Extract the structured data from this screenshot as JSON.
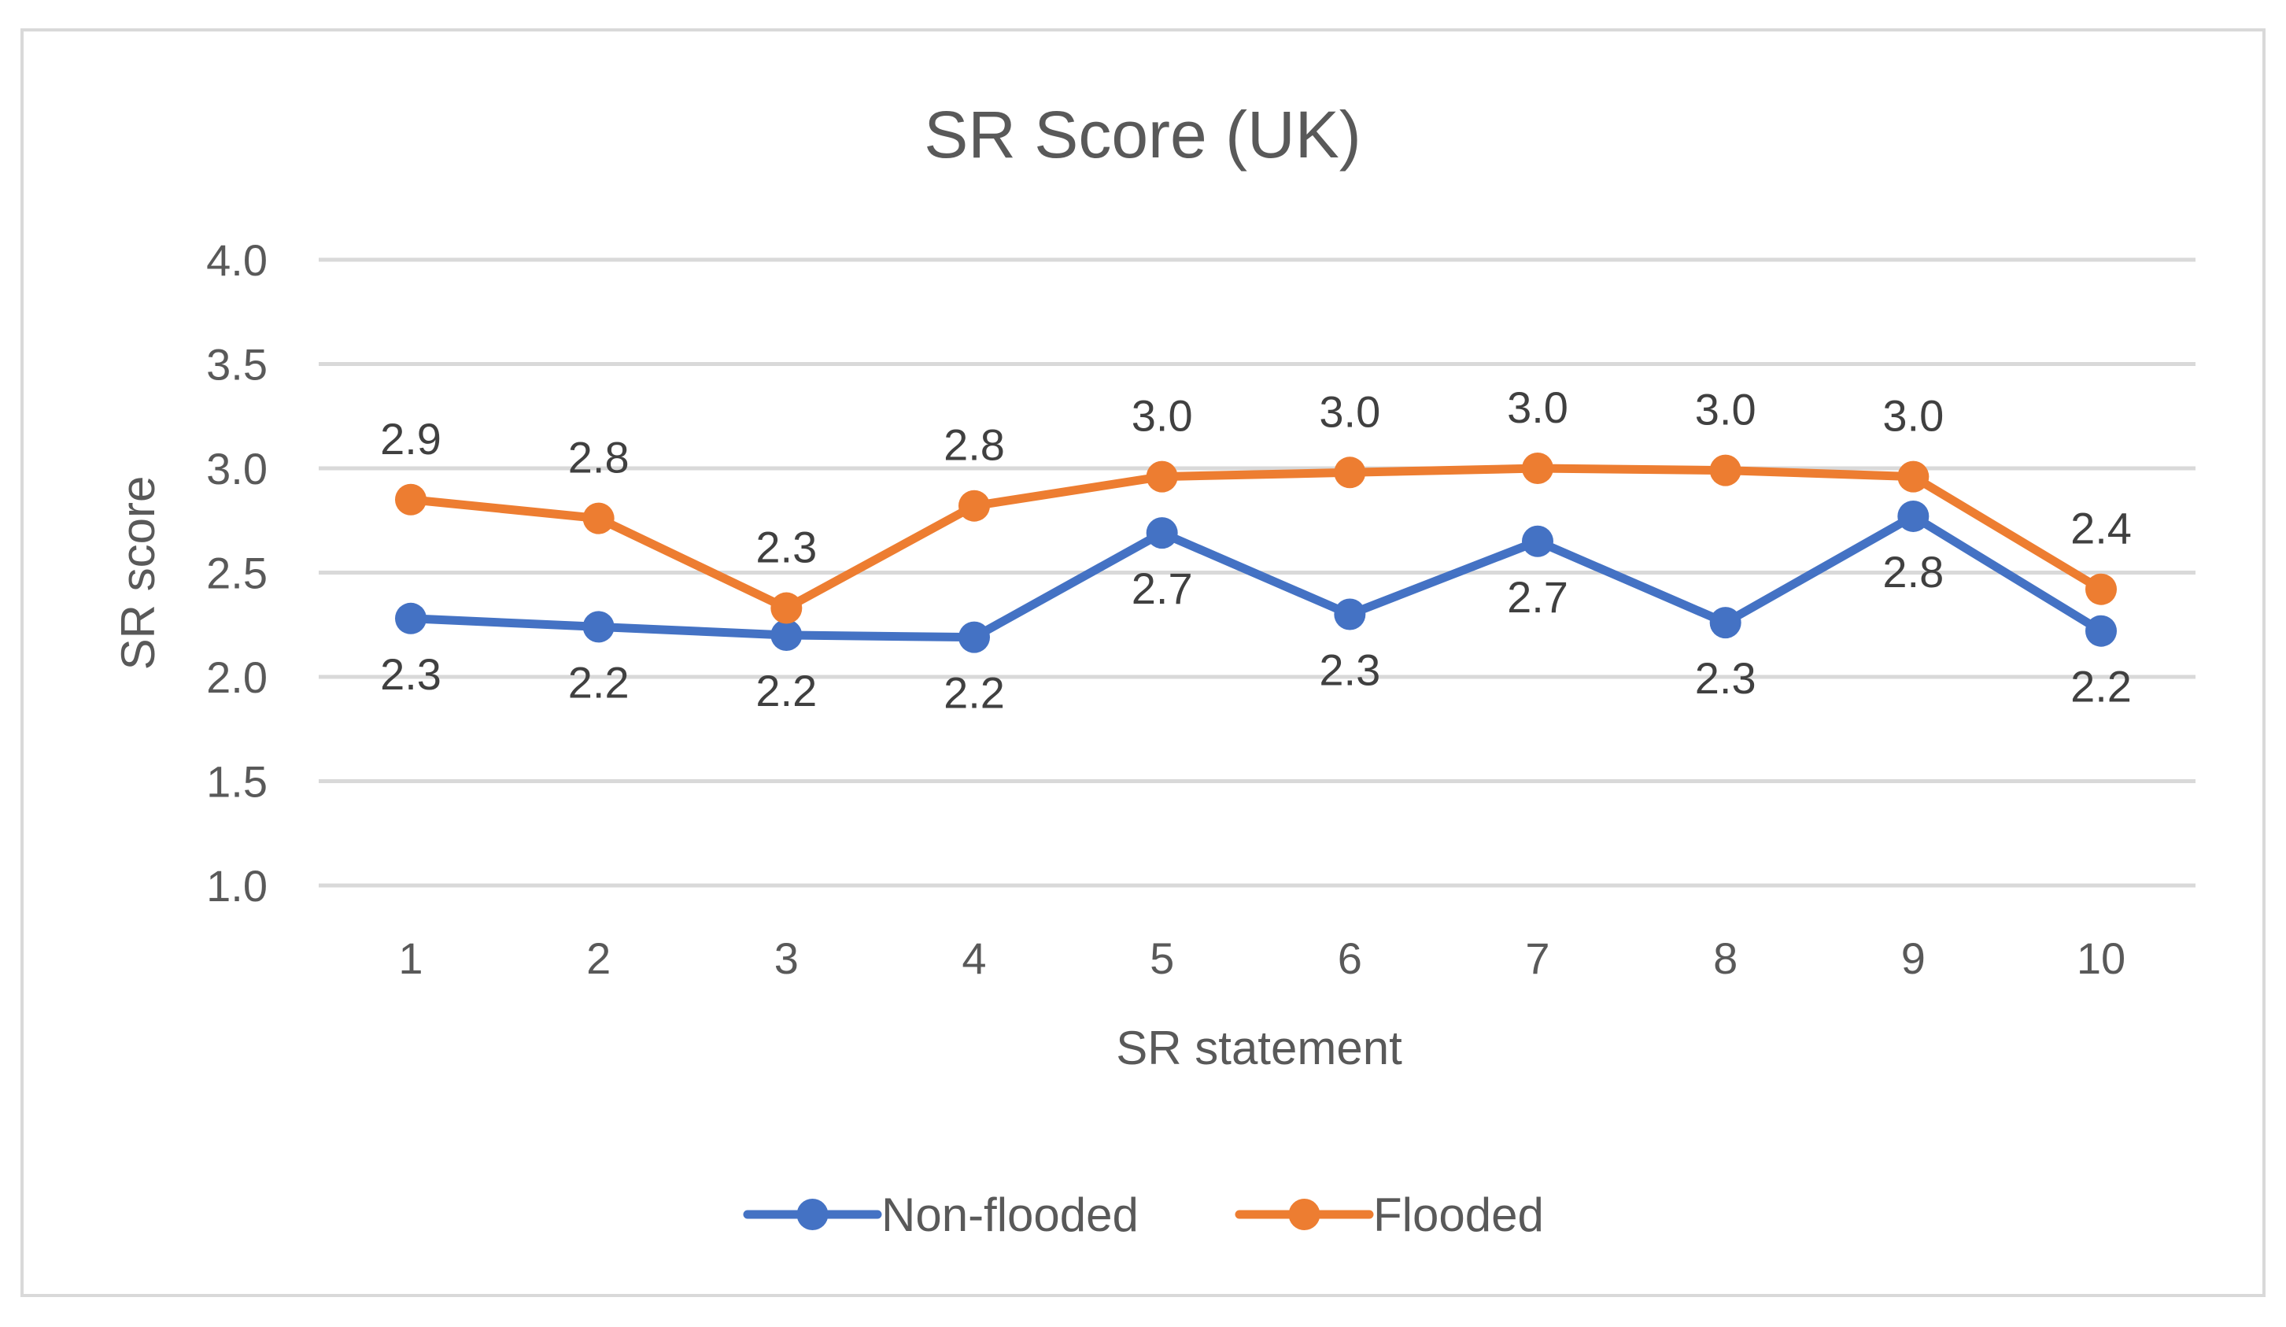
{
  "chart_data": {
    "type": "line",
    "title": "SR Score (UK)",
    "xlabel": "SR statement",
    "ylabel": "SR score",
    "categories": [
      "1",
      "2",
      "3",
      "4",
      "5",
      "6",
      "7",
      "8",
      "9",
      "10"
    ],
    "ylim": [
      1.0,
      4.0
    ],
    "yticks": [
      "1.0",
      "1.5",
      "2.0",
      "2.5",
      "3.0",
      "3.5",
      "4.0"
    ],
    "grid": true,
    "legend_position": "bottom",
    "series": [
      {
        "name": "Non-flooded",
        "color": "#4472c4",
        "values": [
          2.28,
          2.24,
          2.2,
          2.19,
          2.69,
          2.3,
          2.65,
          2.26,
          2.77,
          2.22
        ],
        "labels": [
          "2.3",
          "2.2",
          "2.2",
          "2.2",
          "2.7",
          "2.3",
          "2.7",
          "2.3",
          "2.8",
          "2.2"
        ],
        "label_position": "below"
      },
      {
        "name": "Flooded",
        "color": "#ed7d31",
        "values": [
          2.85,
          2.76,
          2.33,
          2.82,
          2.96,
          2.98,
          3.0,
          2.99,
          2.96,
          2.42
        ],
        "labels": [
          "2.9",
          "2.8",
          "2.3",
          "2.8",
          "3.0",
          "3.0",
          "3.0",
          "3.0",
          "3.0",
          "2.4"
        ],
        "label_position": "above"
      }
    ]
  }
}
